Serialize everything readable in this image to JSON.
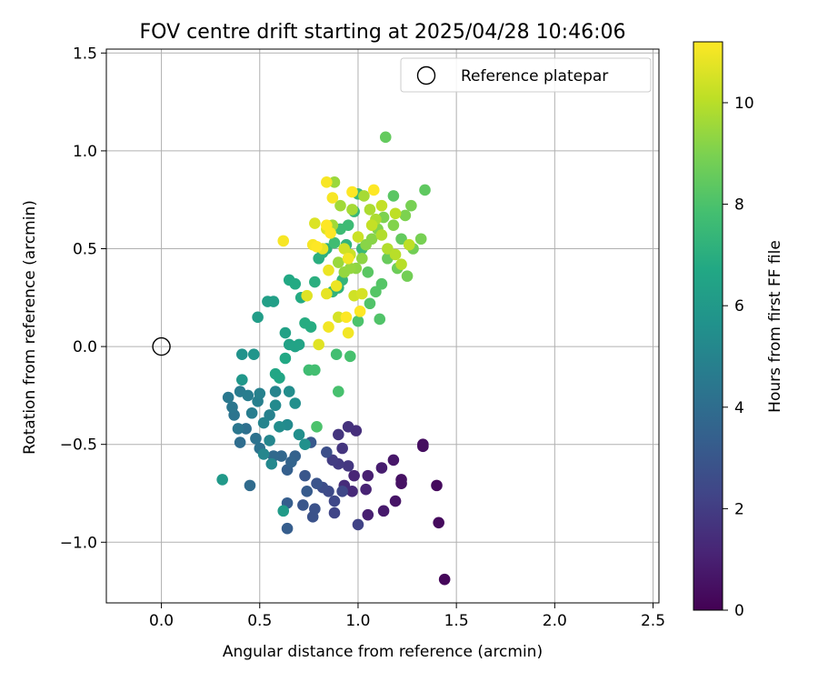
{
  "chart_data": {
    "type": "scatter",
    "title": "FOV centre drift starting at 2025/04/28 10:46:06",
    "xlabel": "Angular distance from reference (arcmin)",
    "ylabel": "Rotation from reference (arcmin)",
    "xlim": [
      -0.28,
      2.53
    ],
    "ylim": [
      -1.31,
      1.52
    ],
    "xticks": [
      0.0,
      0.5,
      1.0,
      1.5,
      2.0,
      2.5
    ],
    "xtick_labels": [
      "0.0",
      "0.5",
      "1.0",
      "1.5",
      "2.0",
      "2.5"
    ],
    "yticks": [
      -1.0,
      -0.5,
      0.0,
      0.5,
      1.0,
      1.5
    ],
    "ytick_labels": [
      "−1.0",
      "−0.5",
      "0.0",
      "0.5",
      "1.0",
      "1.5"
    ],
    "grid": true,
    "legend": {
      "placement": "top-right",
      "entries": [
        {
          "label": "Reference platepar",
          "marker": "open-circle",
          "color": "#000000"
        }
      ]
    },
    "reference_point": {
      "x": 0.0,
      "y": 0.0
    },
    "colorbar": {
      "label": "Hours from first FF file",
      "colormap": "viridis",
      "range": [
        0,
        11.2
      ],
      "ticks": [
        0,
        2,
        4,
        6,
        8,
        10
      ],
      "tick_labels": [
        "0",
        "2",
        "4",
        "6",
        "8",
        "10"
      ]
    },
    "color_key": "hours",
    "points": [
      {
        "x": 1.44,
        "y": -1.19,
        "hours": 0.2
      },
      {
        "x": 1.41,
        "y": -0.9,
        "hours": 0.3
      },
      {
        "x": 1.4,
        "y": -0.71,
        "hours": 0.3
      },
      {
        "x": 1.33,
        "y": -0.51,
        "hours": 0.4
      },
      {
        "x": 1.33,
        "y": -0.5,
        "hours": 0.4
      },
      {
        "x": 1.22,
        "y": -0.68,
        "hours": 0.5
      },
      {
        "x": 1.22,
        "y": -0.7,
        "hours": 0.5
      },
      {
        "x": 1.19,
        "y": -0.79,
        "hours": 0.6
      },
      {
        "x": 1.18,
        "y": -0.58,
        "hours": 0.7
      },
      {
        "x": 1.13,
        "y": -0.84,
        "hours": 0.8
      },
      {
        "x": 1.12,
        "y": -0.62,
        "hours": 0.9
      },
      {
        "x": 1.05,
        "y": -0.86,
        "hours": 1.0
      },
      {
        "x": 1.05,
        "y": -0.66,
        "hours": 1.0
      },
      {
        "x": 1.04,
        "y": -0.73,
        "hours": 1.1
      },
      {
        "x": 0.98,
        "y": -0.66,
        "hours": 1.2
      },
      {
        "x": 0.97,
        "y": -0.74,
        "hours": 1.3
      },
      {
        "x": 0.93,
        "y": -0.71,
        "hours": 1.4
      },
      {
        "x": 0.99,
        "y": -0.43,
        "hours": 1.5
      },
      {
        "x": 0.95,
        "y": -0.41,
        "hours": 1.6
      },
      {
        "x": 0.92,
        "y": -0.52,
        "hours": 1.7
      },
      {
        "x": 0.9,
        "y": -0.45,
        "hours": 1.7
      },
      {
        "x": 0.95,
        "y": -0.61,
        "hours": 1.8
      },
      {
        "x": 0.9,
        "y": -0.6,
        "hours": 1.9
      },
      {
        "x": 0.87,
        "y": -0.58,
        "hours": 2.0
      },
      {
        "x": 1.0,
        "y": -0.91,
        "hours": 2.2
      },
      {
        "x": 0.88,
        "y": -0.85,
        "hours": 2.3
      },
      {
        "x": 0.88,
        "y": -0.79,
        "hours": 2.4
      },
      {
        "x": 0.92,
        "y": -0.74,
        "hours": 2.4
      },
      {
        "x": 0.85,
        "y": -0.74,
        "hours": 2.5
      },
      {
        "x": 0.82,
        "y": -0.72,
        "hours": 2.6
      },
      {
        "x": 0.84,
        "y": -0.54,
        "hours": 2.7
      },
      {
        "x": 0.77,
        "y": -0.87,
        "hours": 2.8
      },
      {
        "x": 0.78,
        "y": -0.83,
        "hours": 2.8
      },
      {
        "x": 0.79,
        "y": -0.7,
        "hours": 2.9
      },
      {
        "x": 0.73,
        "y": -0.66,
        "hours": 3.0
      },
      {
        "x": 0.72,
        "y": -0.81,
        "hours": 3.0
      },
      {
        "x": 0.76,
        "y": -0.49,
        "hours": 3.1
      },
      {
        "x": 0.74,
        "y": -0.74,
        "hours": 3.2
      },
      {
        "x": 0.64,
        "y": -0.93,
        "hours": 3.3
      },
      {
        "x": 0.64,
        "y": -0.8,
        "hours": 3.3
      },
      {
        "x": 0.64,
        "y": -0.63,
        "hours": 3.4
      },
      {
        "x": 0.68,
        "y": -0.56,
        "hours": 3.5
      },
      {
        "x": 0.66,
        "y": -0.59,
        "hours": 3.6
      },
      {
        "x": 0.61,
        "y": -0.56,
        "hours": 3.7
      },
      {
        "x": 0.57,
        "y": -0.56,
        "hours": 3.8
      },
      {
        "x": 0.45,
        "y": -0.71,
        "hours": 3.9
      },
      {
        "x": 0.4,
        "y": -0.49,
        "hours": 4.0
      },
      {
        "x": 0.43,
        "y": -0.42,
        "hours": 4.1
      },
      {
        "x": 0.5,
        "y": -0.52,
        "hours": 4.2
      },
      {
        "x": 0.48,
        "y": -0.47,
        "hours": 4.2
      },
      {
        "x": 0.37,
        "y": -0.35,
        "hours": 4.3
      },
      {
        "x": 0.39,
        "y": -0.42,
        "hours": 4.4
      },
      {
        "x": 0.36,
        "y": -0.31,
        "hours": 4.4
      },
      {
        "x": 0.34,
        "y": -0.26,
        "hours": 4.5
      },
      {
        "x": 0.4,
        "y": -0.23,
        "hours": 4.6
      },
      {
        "x": 0.44,
        "y": -0.25,
        "hours": 4.7
      },
      {
        "x": 0.46,
        "y": -0.34,
        "hours": 4.7
      },
      {
        "x": 0.49,
        "y": -0.28,
        "hours": 4.8
      },
      {
        "x": 0.5,
        "y": -0.24,
        "hours": 4.9
      },
      {
        "x": 0.55,
        "y": -0.35,
        "hours": 4.9
      },
      {
        "x": 0.58,
        "y": -0.23,
        "hours": 5.0
      },
      {
        "x": 0.52,
        "y": -0.39,
        "hours": 5.0
      },
      {
        "x": 0.55,
        "y": -0.48,
        "hours": 5.1
      },
      {
        "x": 0.52,
        "y": -0.55,
        "hours": 5.1
      },
      {
        "x": 0.56,
        "y": -0.6,
        "hours": 5.2
      },
      {
        "x": 0.64,
        "y": -0.4,
        "hours": 5.3
      },
      {
        "x": 0.58,
        "y": -0.3,
        "hours": 5.3
      },
      {
        "x": 0.6,
        "y": -0.41,
        "hours": 5.4
      },
      {
        "x": 0.65,
        "y": -0.23,
        "hours": 5.4
      },
      {
        "x": 0.68,
        "y": -0.29,
        "hours": 5.5
      },
      {
        "x": 0.7,
        "y": -0.45,
        "hours": 5.5
      },
      {
        "x": 0.73,
        "y": -0.5,
        "hours": 5.6
      },
      {
        "x": 0.41,
        "y": -0.04,
        "hours": 5.7
      },
      {
        "x": 0.47,
        "y": -0.04,
        "hours": 5.8
      },
      {
        "x": 0.41,
        "y": -0.17,
        "hours": 5.9
      },
      {
        "x": 0.31,
        "y": -0.68,
        "hours": 6.0
      },
      {
        "x": 0.62,
        "y": -0.84,
        "hours": 6.1
      },
      {
        "x": 0.49,
        "y": 0.15,
        "hours": 6.2
      },
      {
        "x": 0.54,
        "y": 0.23,
        "hours": 6.3
      },
      {
        "x": 0.57,
        "y": 0.23,
        "hours": 6.3
      },
      {
        "x": 0.63,
        "y": 0.07,
        "hours": 6.4
      },
      {
        "x": 0.65,
        "y": 0.01,
        "hours": 6.4
      },
      {
        "x": 0.68,
        "y": 0.0,
        "hours": 6.5
      },
      {
        "x": 0.7,
        "y": 0.01,
        "hours": 6.5
      },
      {
        "x": 0.58,
        "y": -0.14,
        "hours": 6.6
      },
      {
        "x": 0.6,
        "y": -0.16,
        "hours": 6.6
      },
      {
        "x": 0.63,
        "y": -0.06,
        "hours": 6.7
      },
      {
        "x": 0.65,
        "y": 0.34,
        "hours": 6.7
      },
      {
        "x": 0.68,
        "y": 0.32,
        "hours": 6.8
      },
      {
        "x": 0.71,
        "y": 0.25,
        "hours": 6.8
      },
      {
        "x": 0.73,
        "y": 0.12,
        "hours": 6.9
      },
      {
        "x": 0.76,
        "y": 0.1,
        "hours": 6.9
      },
      {
        "x": 0.78,
        "y": 0.33,
        "hours": 7.0
      },
      {
        "x": 0.8,
        "y": 0.45,
        "hours": 7.0
      },
      {
        "x": 0.82,
        "y": 0.48,
        "hours": 7.1
      },
      {
        "x": 0.84,
        "y": 0.5,
        "hours": 7.1
      },
      {
        "x": 0.87,
        "y": 0.28,
        "hours": 7.2
      },
      {
        "x": 0.9,
        "y": 0.3,
        "hours": 7.2
      },
      {
        "x": 0.92,
        "y": 0.34,
        "hours": 7.3
      },
      {
        "x": 0.94,
        "y": 0.52,
        "hours": 7.3
      },
      {
        "x": 0.96,
        "y": 0.47,
        "hours": 7.4
      },
      {
        "x": 0.98,
        "y": 0.69,
        "hours": 7.4
      },
      {
        "x": 1.0,
        "y": 0.78,
        "hours": 7.5
      },
      {
        "x": 1.02,
        "y": 0.5,
        "hours": 7.5
      },
      {
        "x": 0.95,
        "y": 0.62,
        "hours": 7.6
      },
      {
        "x": 0.91,
        "y": 0.6,
        "hours": 7.6
      },
      {
        "x": 0.88,
        "y": 0.53,
        "hours": 7.7
      },
      {
        "x": 0.75,
        "y": -0.12,
        "hours": 7.7
      },
      {
        "x": 0.78,
        "y": -0.12,
        "hours": 7.8
      },
      {
        "x": 0.89,
        "y": -0.04,
        "hours": 7.8
      },
      {
        "x": 0.96,
        "y": -0.05,
        "hours": 7.9
      },
      {
        "x": 0.9,
        "y": -0.23,
        "hours": 7.9
      },
      {
        "x": 0.79,
        "y": -0.41,
        "hours": 8.0
      },
      {
        "x": 1.0,
        "y": 0.13,
        "hours": 8.0
      },
      {
        "x": 1.11,
        "y": 0.14,
        "hours": 8.1
      },
      {
        "x": 1.06,
        "y": 0.22,
        "hours": 8.1
      },
      {
        "x": 1.09,
        "y": 0.28,
        "hours": 8.2
      },
      {
        "x": 1.12,
        "y": 0.32,
        "hours": 8.2
      },
      {
        "x": 1.05,
        "y": 0.38,
        "hours": 8.3
      },
      {
        "x": 1.18,
        "y": 0.77,
        "hours": 8.3
      },
      {
        "x": 1.34,
        "y": 0.8,
        "hours": 8.4
      },
      {
        "x": 1.14,
        "y": 1.07,
        "hours": 8.5
      },
      {
        "x": 1.22,
        "y": 0.55,
        "hours": 8.5
      },
      {
        "x": 1.15,
        "y": 0.45,
        "hours": 8.6
      },
      {
        "x": 1.2,
        "y": 0.4,
        "hours": 8.7
      },
      {
        "x": 1.25,
        "y": 0.36,
        "hours": 8.8
      },
      {
        "x": 1.28,
        "y": 0.5,
        "hours": 8.8
      },
      {
        "x": 1.32,
        "y": 0.55,
        "hours": 8.9
      },
      {
        "x": 1.27,
        "y": 0.72,
        "hours": 8.9
      },
      {
        "x": 1.24,
        "y": 0.67,
        "hours": 9.0
      },
      {
        "x": 1.13,
        "y": 0.66,
        "hours": 9.0
      },
      {
        "x": 1.18,
        "y": 0.62,
        "hours": 9.1
      },
      {
        "x": 1.1,
        "y": 0.6,
        "hours": 9.1
      },
      {
        "x": 1.07,
        "y": 0.55,
        "hours": 9.2
      },
      {
        "x": 1.04,
        "y": 0.52,
        "hours": 9.2
      },
      {
        "x": 1.02,
        "y": 0.45,
        "hours": 9.3
      },
      {
        "x": 0.99,
        "y": 0.4,
        "hours": 9.3
      },
      {
        "x": 0.96,
        "y": 0.4,
        "hours": 9.4
      },
      {
        "x": 0.93,
        "y": 0.38,
        "hours": 9.4
      },
      {
        "x": 0.9,
        "y": 0.43,
        "hours": 9.5
      },
      {
        "x": 0.88,
        "y": 0.84,
        "hours": 9.5
      },
      {
        "x": 0.87,
        "y": 0.62,
        "hours": 9.6
      },
      {
        "x": 0.91,
        "y": 0.72,
        "hours": 9.6
      },
      {
        "x": 0.97,
        "y": 0.7,
        "hours": 9.7
      },
      {
        "x": 1.03,
        "y": 0.77,
        "hours": 9.7
      },
      {
        "x": 1.06,
        "y": 0.7,
        "hours": 9.8
      },
      {
        "x": 1.09,
        "y": 0.65,
        "hours": 9.8
      },
      {
        "x": 1.12,
        "y": 0.57,
        "hours": 9.9
      },
      {
        "x": 1.15,
        "y": 0.5,
        "hours": 9.9
      },
      {
        "x": 1.19,
        "y": 0.47,
        "hours": 10.0
      },
      {
        "x": 1.22,
        "y": 0.42,
        "hours": 10.0
      },
      {
        "x": 1.26,
        "y": 0.52,
        "hours": 10.1
      },
      {
        "x": 1.19,
        "y": 0.68,
        "hours": 10.1
      },
      {
        "x": 1.12,
        "y": 0.72,
        "hours": 10.2
      },
      {
        "x": 1.07,
        "y": 0.62,
        "hours": 10.2
      },
      {
        "x": 1.0,
        "y": 0.56,
        "hours": 10.3
      },
      {
        "x": 0.96,
        "y": 0.47,
        "hours": 10.3
      },
      {
        "x": 0.93,
        "y": 0.5,
        "hours": 10.4
      },
      {
        "x": 0.98,
        "y": 0.26,
        "hours": 10.4
      },
      {
        "x": 1.02,
        "y": 0.27,
        "hours": 10.5
      },
      {
        "x": 0.9,
        "y": 0.15,
        "hours": 10.5
      },
      {
        "x": 0.84,
        "y": 0.6,
        "hours": 10.6
      },
      {
        "x": 0.78,
        "y": 0.63,
        "hours": 10.6
      },
      {
        "x": 0.74,
        "y": 0.26,
        "hours": 10.7
      },
      {
        "x": 0.8,
        "y": 0.01,
        "hours": 10.7
      },
      {
        "x": 0.84,
        "y": 0.27,
        "hours": 10.8
      },
      {
        "x": 0.82,
        "y": 0.5,
        "hours": 10.8
      },
      {
        "x": 0.85,
        "y": 0.39,
        "hours": 10.9
      },
      {
        "x": 0.89,
        "y": 0.31,
        "hours": 10.9
      },
      {
        "x": 0.95,
        "y": 0.45,
        "hours": 11.0
      },
      {
        "x": 0.95,
        "y": 0.07,
        "hours": 11.0
      },
      {
        "x": 0.85,
        "y": 0.1,
        "hours": 11.0
      },
      {
        "x": 0.77,
        "y": 0.52,
        "hours": 11.1
      },
      {
        "x": 0.62,
        "y": 0.54,
        "hours": 11.1
      },
      {
        "x": 0.84,
        "y": 0.84,
        "hours": 11.1
      },
      {
        "x": 0.87,
        "y": 0.76,
        "hours": 11.1
      },
      {
        "x": 0.97,
        "y": 0.79,
        "hours": 11.2
      },
      {
        "x": 1.08,
        "y": 0.8,
        "hours": 11.2
      },
      {
        "x": 1.01,
        "y": 0.18,
        "hours": 11.2
      },
      {
        "x": 0.94,
        "y": 0.15,
        "hours": 11.2
      },
      {
        "x": 0.84,
        "y": 0.62,
        "hours": 11.2
      },
      {
        "x": 0.86,
        "y": 0.58,
        "hours": 11.2
      },
      {
        "x": 0.79,
        "y": 0.51,
        "hours": 11.2
      }
    ]
  }
}
